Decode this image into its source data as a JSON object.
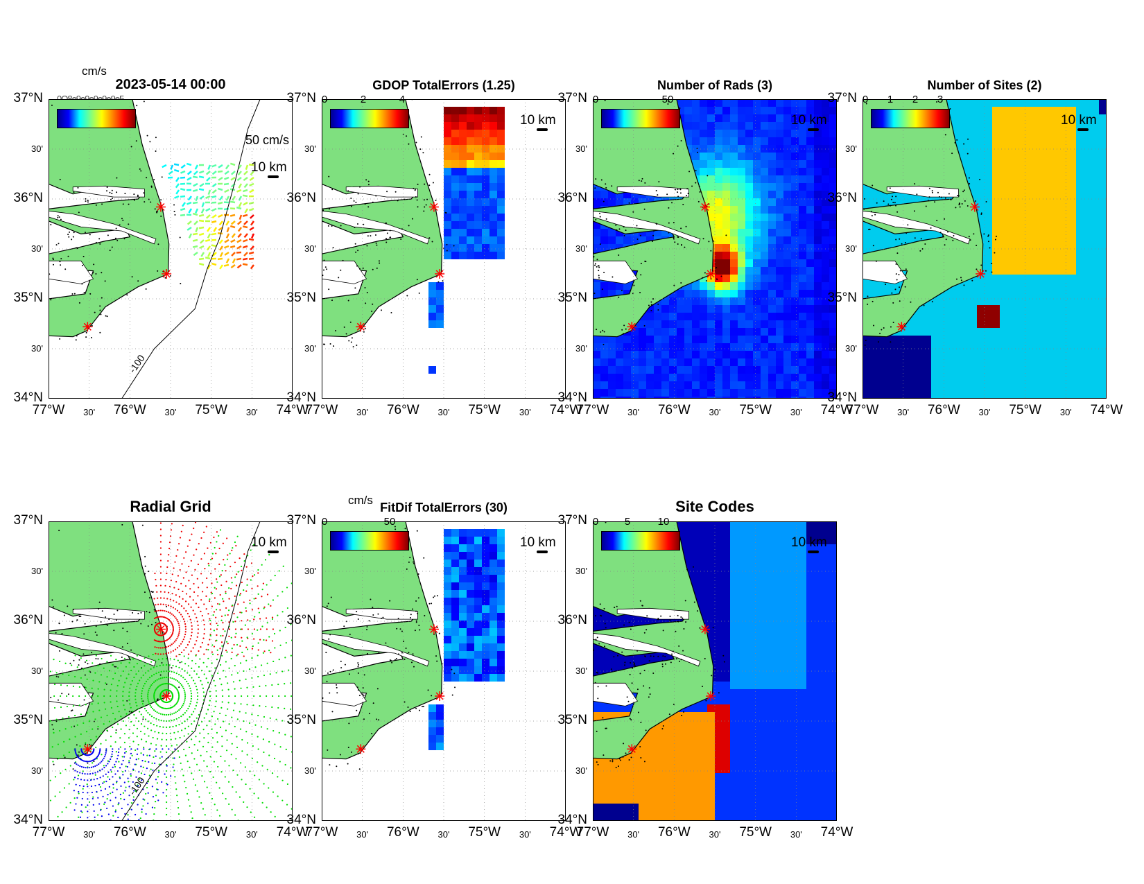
{
  "axes": {
    "y_labels": [
      "37°N",
      "30'",
      "36°N",
      "30'",
      "35°N",
      "30'",
      "34°N"
    ],
    "x_labels": [
      "77°W",
      "30'",
      "76°W",
      "30'",
      "75°W",
      "30'",
      "74°W"
    ],
    "lat_range": [
      34,
      37
    ],
    "lon_range": [
      -77,
      -74
    ],
    "grid": true
  },
  "scale_label": "10 km",
  "contour_label": "-100",
  "colors": {
    "land": "#7fe07f",
    "ocean": "#ffffff",
    "site_marker": "#ff0000",
    "coast": "#000000"
  },
  "sites": [
    {
      "lat": 35.92,
      "lon": -75.62
    },
    {
      "lat": 35.25,
      "lon": -75.55
    },
    {
      "lat": 34.72,
      "lon": -76.52
    }
  ],
  "panels": [
    {
      "title": "2023-05-14 00:00",
      "overlap_text": "0O8e9e9e9e9e9e5",
      "cbar_unit": "cm/s",
      "cbar_ticks": [],
      "vector_label": "50 cm/s",
      "fill": "vectors",
      "contour_label": "-100"
    },
    {
      "title": "GDOP TotalErrors (1.25)",
      "cbar_unit": "",
      "cbar_ticks": [
        "0",
        "2",
        "4"
      ],
      "fill": "gdop",
      "contour_label": "1.25"
    },
    {
      "title": "Number of Rads (3)",
      "cbar_unit": "",
      "cbar_ticks": [
        "0",
        "50"
      ],
      "fill": "rads",
      "contour_label": "3"
    },
    {
      "title": "Number of Sites (2)",
      "cbar_unit": "",
      "cbar_ticks": [
        "0",
        "1",
        "2",
        "3"
      ],
      "fill": "sites",
      "contour_label": "2"
    },
    {
      "title": "Radial Grid",
      "cbar_unit": "",
      "cbar_ticks": [],
      "fill": "radial",
      "contour_label": "-100"
    },
    {
      "title": "FitDif TotalErrors (30)",
      "cbar_unit": "cm/s",
      "cbar_ticks": [
        "0",
        "50"
      ],
      "fill": "fitdif",
      "contour_label": "30"
    },
    {
      "title": "Site Codes",
      "cbar_unit": "",
      "cbar_ticks": [
        "0",
        "5",
        "10"
      ],
      "fill": "codes",
      "contour_label": ""
    }
  ]
}
